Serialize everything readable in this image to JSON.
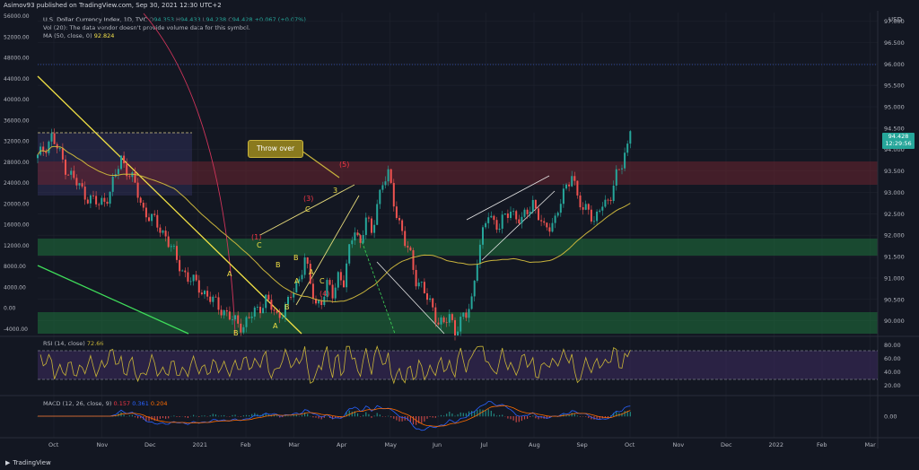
{
  "header": {
    "title": "Asimov93 published on TradingView.com, Sep 30, 2021 12:30 UTC+2"
  },
  "legend": {
    "symbol": "U.S. Dollar Currency Index, 1D, TVC",
    "o_label": "O",
    "o_value": "94.353",
    "h_label": "H",
    "h_value": "94.433",
    "l_label": "L",
    "l_value": "94.238",
    "c_label": "C",
    "c_value": "94.428",
    "change": "+0.067 (+0.07%)",
    "vol": "Vol (20): The data vendor doesn't provide volume data for this symbol.",
    "ma_label": "MA (50, close, 0)",
    "ma_value": "92.824",
    "rsi_label": "RSI (14, close)",
    "rsi_value": "72.66",
    "macd_label": "MACD (12, 26, close, 9)",
    "macd_v1": "0.157",
    "macd_v2": "0.361",
    "macd_v3": "0.204"
  },
  "axis": {
    "currency": "USD",
    "last_price": "94.428",
    "countdown": "12:29:56"
  },
  "annotation": {
    "callout": "Throw over"
  },
  "footer": {
    "brand": "TradingView"
  },
  "colors": {
    "background": "#131722",
    "up": "#26a69a",
    "down": "#ef5350",
    "ma": "#c9b43c",
    "rsi": "#c8b437",
    "green_zone": "#1e6b3a",
    "red_zone": "#6b2530",
    "purple_zone": "#3b2a5c"
  },
  "chart_data": [
    {
      "type": "candlestick",
      "title": "U.S. Dollar Currency Index, 1D, TVC",
      "y_right_ticks": [
        "97.000",
        "96.500",
        "96.000",
        "95.500",
        "95.000",
        "94.500",
        "94.000",
        "93.500",
        "93.000",
        "92.500",
        "92.000",
        "91.500",
        "91.000",
        "90.500",
        "90.000"
      ],
      "y_left_ticks": [
        "56000.00",
        "52000.00",
        "48000.00",
        "44000.00",
        "40000.00",
        "36000.00",
        "32000.00",
        "28000.00",
        "24000.00",
        "20000.00",
        "16000.00",
        "12000.00",
        "8000.00",
        "4000.00",
        "0.00",
        "-4000.00"
      ],
      "x_ticks": [
        "Oct",
        "Nov",
        "Dec",
        "2021",
        "Feb",
        "Mar",
        "Apr",
        "May",
        "Jun",
        "Jul",
        "Aug",
        "Sep",
        "Oct",
        "Nov",
        "Dec",
        "2022",
        "Feb",
        "Mar"
      ],
      "ylim": [
        89.7,
        97.2
      ],
      "close_path": [
        [
          0,
          93.8
        ],
        [
          5,
          94.3
        ],
        [
          10,
          93.6
        ],
        [
          14,
          93.2
        ],
        [
          18,
          92.9
        ],
        [
          22,
          92.7
        ],
        [
          26,
          93.0
        ],
        [
          30,
          93.8
        ],
        [
          34,
          93.3
        ],
        [
          38,
          92.6
        ],
        [
          42,
          92.3
        ],
        [
          46,
          92.0
        ],
        [
          50,
          91.4
        ],
        [
          54,
          91.0
        ],
        [
          58,
          90.8
        ],
        [
          62,
          90.5
        ],
        [
          66,
          90.3
        ],
        [
          70,
          90.0
        ],
        [
          74,
          89.9
        ],
        [
          78,
          90.2
        ],
        [
          82,
          90.5
        ],
        [
          86,
          90.1
        ],
        [
          90,
          90.4
        ],
        [
          94,
          91.0
        ],
        [
          96,
          91.5
        ],
        [
          98,
          90.8
        ],
        [
          100,
          90.4
        ],
        [
          102,
          90.5
        ],
        [
          104,
          90.8
        ],
        [
          106,
          90.6
        ],
        [
          108,
          91.1
        ],
        [
          110,
          90.9
        ],
        [
          112,
          91.6
        ],
        [
          114,
          92.2
        ],
        [
          116,
          91.8
        ],
        [
          118,
          92.4
        ],
        [
          120,
          92.0
        ],
        [
          122,
          92.8
        ],
        [
          124,
          93.2
        ],
        [
          126,
          93.4
        ],
        [
          128,
          92.8
        ],
        [
          130,
          92.3
        ],
        [
          132,
          91.8
        ],
        [
          134,
          91.5
        ],
        [
          136,
          91.0
        ],
        [
          138,
          90.8
        ],
        [
          140,
          90.5
        ],
        [
          142,
          90.3
        ],
        [
          144,
          90.0
        ],
        [
          146,
          89.9
        ],
        [
          148,
          90.1
        ],
        [
          150,
          89.8
        ],
        [
          152,
          90.0
        ],
        [
          154,
          90.1
        ],
        [
          156,
          90.5
        ],
        [
          158,
          91.5
        ],
        [
          160,
          92.0
        ],
        [
          162,
          92.5
        ],
        [
          166,
          92.2
        ],
        [
          170,
          92.6
        ],
        [
          174,
          92.3
        ],
        [
          178,
          92.8
        ],
        [
          182,
          92.1
        ],
        [
          186,
          92.4
        ],
        [
          190,
          93.1
        ],
        [
          192,
          93.5
        ],
        [
          194,
          92.9
        ],
        [
          196,
          92.5
        ],
        [
          198,
          92.7
        ],
        [
          200,
          92.3
        ],
        [
          202,
          92.6
        ],
        [
          204,
          92.7
        ],
        [
          206,
          93.0
        ],
        [
          208,
          93.4
        ],
        [
          210,
          93.6
        ],
        [
          212,
          94.1
        ],
        [
          213,
          94.43
        ]
      ],
      "ma50": {
        "name": "MA (50, close, 0)",
        "value": 92.824
      }
    },
    {
      "type": "line",
      "title": "RSI (14, close)",
      "value": 72.66,
      "ylim": [
        15,
        85
      ],
      "y_ticks": [
        "80.00",
        "60.00",
        "40.00",
        "20.00"
      ],
      "bands": [
        70,
        30
      ]
    },
    {
      "type": "line",
      "title": "MACD (12, 26, close, 9)",
      "values": [
        0.157,
        0.361,
        0.204
      ],
      "y_ticks": [
        "0.00"
      ]
    }
  ]
}
